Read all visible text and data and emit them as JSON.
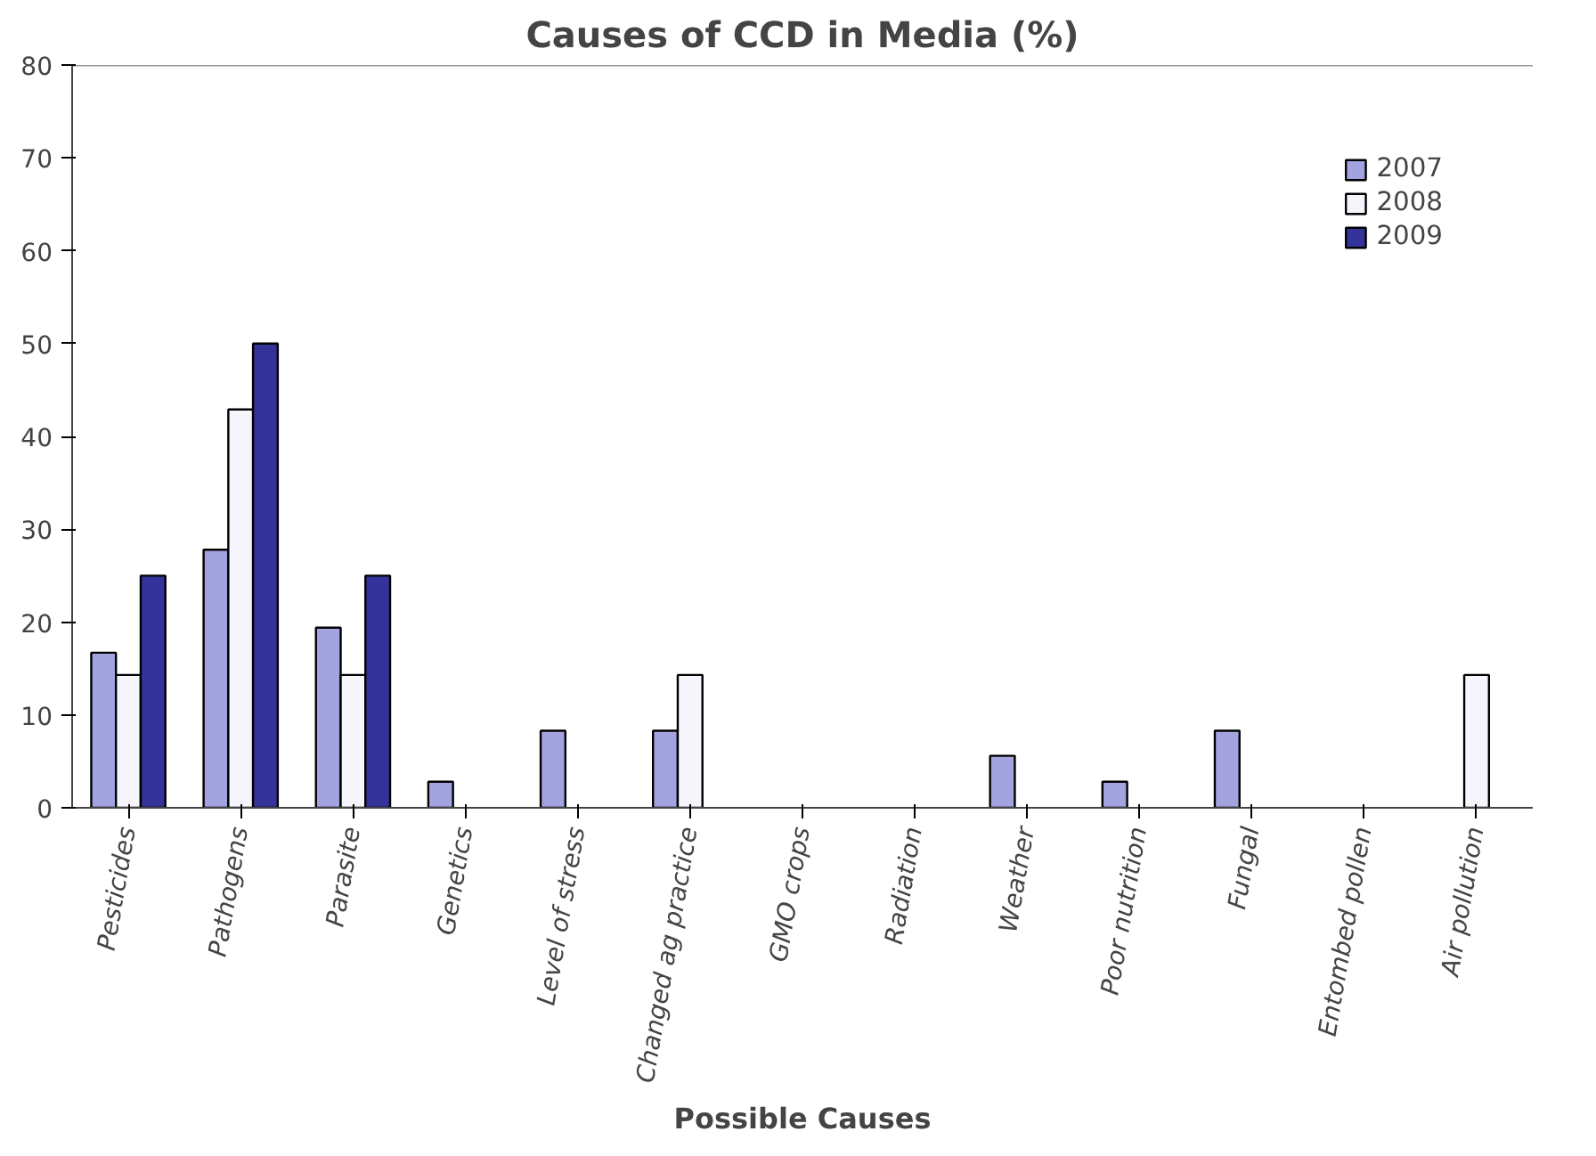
{
  "chart_data": {
    "type": "bar",
    "title": "Causes of CCD in Media (%)",
    "xlabel": "Possible Causes",
    "categories": [
      "Pesticides",
      "Pathogens",
      "Parasite",
      "Genetics",
      "Level of stress",
      "Changed ag practice",
      "GMO crops",
      "Radiation",
      "Weather",
      "Poor nutrition",
      "Fungal",
      "Entombed pollen",
      "Air pollution"
    ],
    "series": [
      {
        "name": "2007",
        "color": "#a3a3e0",
        "values": [
          16.7,
          27.8,
          19.4,
          2.8,
          8.3,
          8.3,
          null,
          null,
          5.6,
          2.8,
          8.3,
          null,
          null
        ]
      },
      {
        "name": "2008",
        "color": "#f5f5fb",
        "values": [
          14.3,
          42.9,
          14.3,
          null,
          null,
          14.3,
          null,
          null,
          null,
          null,
          null,
          null,
          14.3
        ]
      },
      {
        "name": "2009",
        "color": "#333399",
        "values": [
          25,
          50,
          25,
          null,
          null,
          null,
          null,
          null,
          null,
          null,
          null,
          null,
          null
        ]
      }
    ],
    "ylim": [
      0,
      80
    ],
    "yticks": [
      0,
      10,
      20,
      30,
      40,
      50,
      60,
      70,
      80
    ],
    "grid": false,
    "legend": "top right"
  }
}
